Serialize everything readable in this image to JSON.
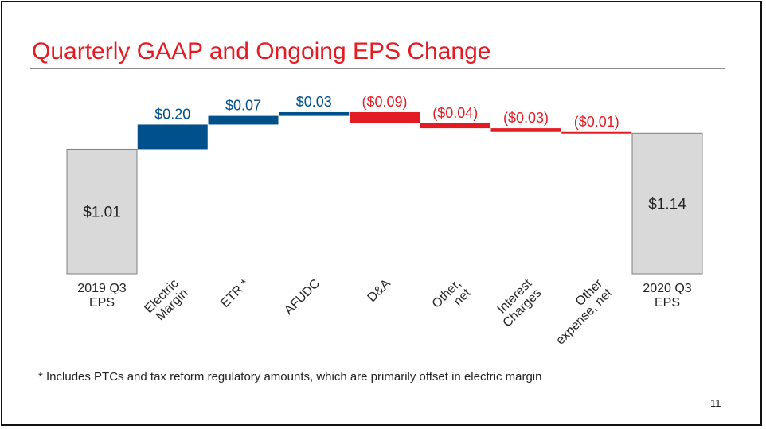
{
  "slide": {
    "title": "Quarterly GAAP and Ongoing EPS Change",
    "footnote": "* Includes PTCs and tax reform regulatory amounts, which are primarily offset in electric margin",
    "page_number": "11"
  },
  "colors": {
    "title": "#e31b23",
    "increase": "#00508c",
    "decrease": "#e31b23",
    "total_fill": "#d9d9d9",
    "total_border": "#7f7f7f",
    "axis_text": "#222222"
  },
  "chart_data": {
    "type": "bar",
    "subtype": "waterfall",
    "categories": [
      "2019 Q3 EPS",
      "Electric Margin",
      "ETR *",
      "AFUDC",
      "D&A",
      "Other, net",
      "Interest Charges",
      "Other expense, net",
      "2020 Q3 EPS"
    ],
    "category_lines": [
      [
        "2019 Q3",
        "EPS"
      ],
      [
        "Electric",
        "Margin"
      ],
      [
        "ETR *"
      ],
      [
        "AFUDC"
      ],
      [
        "D&A"
      ],
      [
        "Other,",
        "net"
      ],
      [
        "Interest",
        "Charges"
      ],
      [
        "Other",
        "expense, net"
      ],
      [
        "2020 Q3",
        "EPS"
      ]
    ],
    "label_rotated": [
      false,
      true,
      true,
      true,
      true,
      true,
      true,
      true,
      false
    ],
    "kind": [
      "total",
      "increase",
      "increase",
      "increase",
      "decrease",
      "decrease",
      "decrease",
      "decrease",
      "total"
    ],
    "values": [
      1.01,
      0.2,
      0.07,
      0.03,
      -0.09,
      -0.04,
      -0.03,
      -0.01,
      1.14
    ],
    "data_labels": [
      "$1.01",
      "$0.20",
      "$0.07",
      "$0.03",
      "($0.09)",
      "($0.04)",
      "($0.03)",
      "($0.01)",
      "$1.14"
    ],
    "value_axis_visible": false,
    "grid": false,
    "legend": "none"
  }
}
